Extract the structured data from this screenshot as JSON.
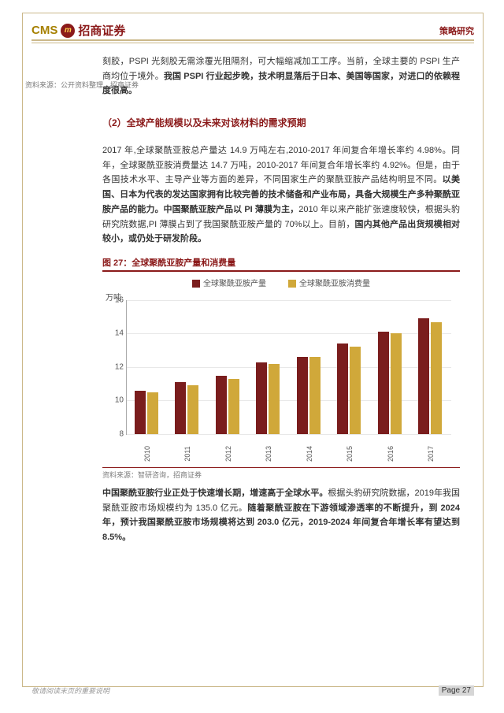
{
  "header": {
    "logo_en": "CMS",
    "logo_badge": "m",
    "logo_cn": "招商证券",
    "right_label": "策略研究"
  },
  "para1_plain_a": "刻胶，PSPI 光刻胶无需涂覆光阻隔剂，可大幅缩减加工工序。当前，全球主要的 PSPI 生产商均位于境外。",
  "para1_bold": "我国 PSPI 行业起步晚，技术明显落后于日本、美国等国家，对进口的依赖程度很高。",
  "source1": "资料来源：公开资料整理，招商证券",
  "section_title": "（2）全球产能规模以及未来对该材料的需求预期",
  "para2_a": "2017 年,全球聚酰亚胺总产量达 14.9 万吨左右,2010-2017 年间复合年增长率约 4.98%。同年，全球聚酰亚胺消费量达 14.7 万吨，2010-2017 年间复合年增长率约 4.92%。但是，由于各国技术水平、主导产业等方面的差异，不同国家生产的聚酰亚胺产品结构明显不同。",
  "para2_bold_a": "以美国、日本为代表的发达国家拥有比较完善的技术储备和产业布局，具备大规模生产多种聚酰亚胺产品的能力。中国聚酰亚胺产品以 PI 薄膜为主，",
  "para2_b": "2010 年以来产能扩张速度较快，根据头豹研究院数据,PI 薄膜占到了我国聚酰亚胺产量的 70%以上。目前，",
  "para2_bold_b": "国内其他产品出货规模相对较小，或仍处于研发阶段。",
  "figure": {
    "title": "图 27：全球聚酰亚胺产量和消费量",
    "y_axis_title": "万吨",
    "legend": [
      "全球聚酰亚胺产量",
      "全球聚酰亚胺消费量"
    ],
    "colors": [
      "#7a1d1d",
      "#d0a83a"
    ],
    "grid_color": "#e8e8e8",
    "ymin": 8,
    "ymax": 16,
    "ytick_step": 2,
    "yticks": [
      "8",
      "10",
      "12",
      "14",
      "16"
    ],
    "categories": [
      "2010",
      "2011",
      "2012",
      "2013",
      "2014",
      "2015",
      "2016",
      "2017"
    ],
    "series_production": [
      10.6,
      11.1,
      11.5,
      12.3,
      12.6,
      13.4,
      14.1,
      14.9
    ],
    "series_consumption": [
      10.5,
      10.9,
      11.3,
      12.2,
      12.6,
      13.2,
      14.0,
      14.7
    ]
  },
  "source2": "资料来源：智研咨询，招商证券",
  "para3_bold_a": "中国聚酰亚胺行业正处于快速增长期，增速高于全球水平。",
  "para3_a": "根据头豹研究院数据，2019年我国聚酰亚胺市场规模约为 135.0 亿元。",
  "para3_bold_b": "随着聚酰亚胺在下游领域渗透率的不断提升，到 2024 年，预计我国聚酰亚胺市场规模将达到 203.0 亿元，2019-2024 年间复合年增长率有望达到 8.5%。",
  "footer": {
    "note": "敬请阅读末页的重要说明",
    "page_label": "Page",
    "page_num": "27"
  }
}
